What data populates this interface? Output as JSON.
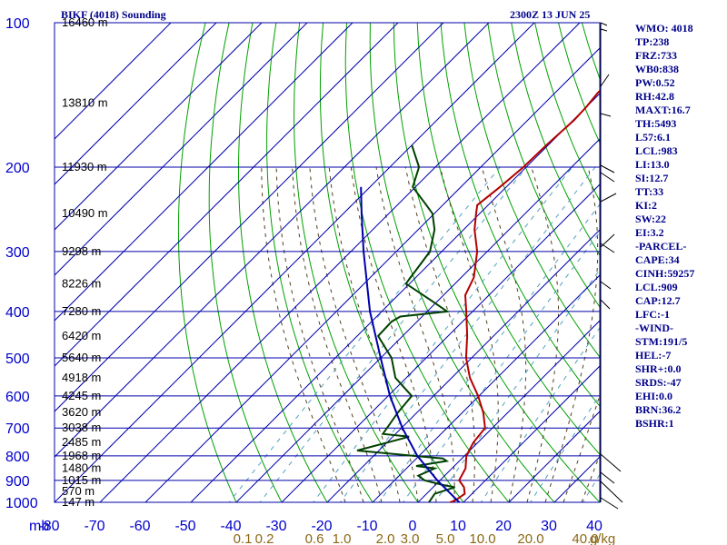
{
  "header": {
    "station": "BIKF (4018) Sounding",
    "time": "2300Z 13 JUN 25"
  },
  "chart_data": {
    "type": "line",
    "title": "BIKF (4018) Sounding",
    "subtitle": "2300Z 13 JUN 25",
    "x_axis": {
      "unit_label": "mb",
      "ticks": [
        -80,
        -70,
        -60,
        -50,
        -40,
        -30,
        -20,
        -10,
        0,
        10,
        20,
        30,
        40
      ],
      "tick_labels": [
        "-80",
        "-70",
        "-60",
        "-50",
        "-40",
        "-30",
        "-20",
        "-10",
        "0",
        "10",
        "20",
        "30",
        "40"
      ],
      "range": [
        -80,
        40
      ]
    },
    "y_axis": {
      "scale": "log",
      "ticks": [
        100,
        200,
        300,
        400,
        500,
        600,
        700,
        800,
        900,
        1000
      ],
      "tick_labels": [
        "100",
        "200",
        "300",
        "400",
        "500",
        "600",
        "700",
        "800",
        "900",
        "1000"
      ],
      "range": [
        100,
        1050
      ]
    },
    "mixing_ratio_labels": [
      "0.1",
      "0.2",
      "0.6",
      "1.0",
      "2.0",
      "3.0",
      "5.0",
      "10.0",
      "20.0",
      "40.0",
      "g/kg"
    ],
    "height_labels": [
      {
        "p": 100,
        "text": "16460 m"
      },
      {
        "p": 147,
        "text": "13810 m"
      },
      {
        "p": 200,
        "text": "11930 m"
      },
      {
        "p": 250,
        "text": "10490 m"
      },
      {
        "p": 300,
        "text": "9298 m"
      },
      {
        "p": 350,
        "text": "8226 m"
      },
      {
        "p": 400,
        "text": "7280 m"
      },
      {
        "p": 450,
        "text": "6420 m"
      },
      {
        "p": 500,
        "text": "5640 m"
      },
      {
        "p": 550,
        "text": "4918 m"
      },
      {
        "p": 600,
        "text": "4245 m"
      },
      {
        "p": 650,
        "text": "3620 m"
      },
      {
        "p": 700,
        "text": "3038 m"
      },
      {
        "p": 750,
        "text": "2485 m"
      },
      {
        "p": 800,
        "text": "1968 m"
      },
      {
        "p": 850,
        "text": "1480 m"
      },
      {
        "p": 900,
        "text": "1015 m"
      },
      {
        "p": 950,
        "text": "570 m"
      },
      {
        "p": 1000,
        "text": "147 m"
      }
    ],
    "series": [
      {
        "name": "temperature",
        "color": "#b40000",
        "points": [
          [
            1010,
            6.4
          ],
          [
            990,
            7.8
          ],
          [
            960,
            8.4
          ],
          [
            930,
            6.8
          ],
          [
            900,
            4.2
          ],
          [
            850,
            3.0
          ],
          [
            800,
            0.4
          ],
          [
            750,
            -1.0
          ],
          [
            700,
            -1.6
          ],
          [
            650,
            -5.4
          ],
          [
            600,
            -10.2
          ],
          [
            550,
            -16.0
          ],
          [
            500,
            -21.2
          ],
          [
            450,
            -25.8
          ],
          [
            400,
            -31.4
          ],
          [
            370,
            -35.2
          ],
          [
            340,
            -37.2
          ],
          [
            300,
            -42.2
          ],
          [
            270,
            -47.6
          ],
          [
            250,
            -50.8
          ],
          [
            240,
            -52.4
          ],
          [
            220,
            -51.4
          ],
          [
            200,
            -50.6
          ],
          [
            180,
            -50.4
          ],
          [
            160,
            -49.8
          ],
          [
            150,
            -50.0
          ],
          [
            140,
            -50.6
          ],
          [
            120,
            -50.2
          ],
          [
            110,
            -50.4
          ],
          [
            100,
            -50.6
          ]
        ]
      },
      {
        "name": "dewpoint",
        "color": "#004000",
        "points": [
          [
            1000,
            2.4
          ],
          [
            960,
            1.8
          ],
          [
            930,
            4.8
          ],
          [
            920,
            1.6
          ],
          [
            900,
            -3.4
          ],
          [
            880,
            -5.8
          ],
          [
            850,
            -3.8
          ],
          [
            840,
            -8.4
          ],
          [
            820,
            -2.8
          ],
          [
            810,
            -4.2
          ],
          [
            800,
            -11.4
          ],
          [
            780,
            -24.8
          ],
          [
            730,
            -16.4
          ],
          [
            720,
            -22.8
          ],
          [
            650,
            -24.2
          ],
          [
            600,
            -24.8
          ],
          [
            550,
            -32.4
          ],
          [
            500,
            -37.6
          ],
          [
            450,
            -45.4
          ],
          [
            420,
            -45.6
          ],
          [
            410,
            -44.8
          ],
          [
            400,
            -35.6
          ],
          [
            380,
            -41.4
          ],
          [
            350,
            -50.8
          ],
          [
            300,
            -52.6
          ],
          [
            270,
            -56.4
          ],
          [
            250,
            -60.4
          ],
          [
            240,
            -63.6
          ],
          [
            220,
            -70.6
          ],
          [
            200,
            -73.6
          ],
          [
            180,
            -80.0
          ]
        ]
      },
      {
        "name": "parcel",
        "color": "#0000aa",
        "points": [
          [
            1010,
            10.0
          ],
          [
            900,
            -0.6
          ],
          [
            800,
            -10.4
          ],
          [
            700,
            -19.8
          ],
          [
            600,
            -29.6
          ],
          [
            500,
            -40.0
          ],
          [
            400,
            -52.6
          ],
          [
            300,
            -67.2
          ],
          [
            250,
            -76.0
          ],
          [
            220,
            -82.0
          ]
        ]
      }
    ]
  },
  "indices": [
    "WMO: 4018",
    "TP:238",
    "FRZ:733",
    "WB0:838",
    "PW:0.52",
    "RH:42.8",
    "MAXT:16.7",
    "TH:5493",
    "L57:6.1",
    "LCL:983",
    "LI:13.0",
    "SI:12.7",
    "TT:33",
    "KI:2",
    "SW:22",
    "EI:3.2",
    "-PARCEL-",
    "CAPE:34",
    "CINH:59257",
    "LCL:909",
    "CAP:12.7",
    "LFC:-1",
    "-WIND-",
    "STM:191/5",
    "HEL:-7",
    "SHR+:0.0",
    "SRDS:-47",
    "EHI:0.0",
    "BRN:36.2",
    "BSHR:1"
  ],
  "colors": {
    "grid": "#0000aa",
    "isotherm": "#0000aa",
    "dry_adiabat": "#00a000",
    "moist_adiabat": "#504020",
    "mixing_ratio": "#50a0c0",
    "axis_label": "#0000cc",
    "mixing_label": "#8b6914"
  }
}
